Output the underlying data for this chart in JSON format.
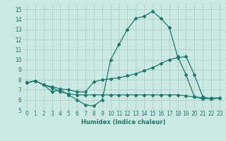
{
  "xlabel": "Humidex (Indice chaleur)",
  "ylabel": "",
  "xlim": [
    -0.5,
    23.5
  ],
  "ylim": [
    5,
    15.5
  ],
  "yticks": [
    5,
    6,
    7,
    8,
    9,
    10,
    11,
    12,
    13,
    14,
    15
  ],
  "xticks": [
    0,
    1,
    2,
    3,
    4,
    5,
    6,
    7,
    8,
    9,
    10,
    11,
    12,
    13,
    14,
    15,
    16,
    17,
    18,
    19,
    20,
    21,
    22,
    23
  ],
  "background_color": "#cce8e2",
  "grid_color": "#afd4ce",
  "line_color": "#1a7a6e",
  "line1_x": [
    0,
    1,
    2,
    3,
    4,
    5,
    6,
    7,
    8,
    9,
    10,
    11,
    12,
    13,
    14,
    15,
    16,
    17,
    18,
    19,
    20,
    21,
    22,
    23
  ],
  "line1_y": [
    7.7,
    7.9,
    7.5,
    6.8,
    7.0,
    6.5,
    6.0,
    5.5,
    5.4,
    6.0,
    10.0,
    11.5,
    13.0,
    14.1,
    14.3,
    14.8,
    14.1,
    13.2,
    10.3,
    8.5,
    6.3,
    6.1,
    6.2,
    6.2
  ],
  "line2_x": [
    0,
    1,
    2,
    3,
    4,
    5,
    6,
    7,
    8,
    9,
    10,
    11,
    12,
    13,
    14,
    15,
    16,
    17,
    18,
    19,
    20,
    21,
    22,
    23
  ],
  "line2_y": [
    7.7,
    7.9,
    7.5,
    7.3,
    7.1,
    7.0,
    6.8,
    6.8,
    7.8,
    8.0,
    8.1,
    8.2,
    8.4,
    8.6,
    8.9,
    9.2,
    9.6,
    10.0,
    10.2,
    10.3,
    8.5,
    6.3,
    6.1,
    6.2
  ],
  "line3_x": [
    0,
    1,
    2,
    3,
    4,
    5,
    6,
    7,
    8,
    9,
    10,
    11,
    12,
    13,
    14,
    15,
    16,
    17,
    18,
    19,
    20,
    21,
    22,
    23
  ],
  "line3_y": [
    7.7,
    7.9,
    7.5,
    7.2,
    6.8,
    6.6,
    6.5,
    6.5,
    6.5,
    6.5,
    6.5,
    6.5,
    6.5,
    6.5,
    6.5,
    6.5,
    6.5,
    6.5,
    6.5,
    6.4,
    6.3,
    6.2,
    6.1,
    6.2
  ]
}
